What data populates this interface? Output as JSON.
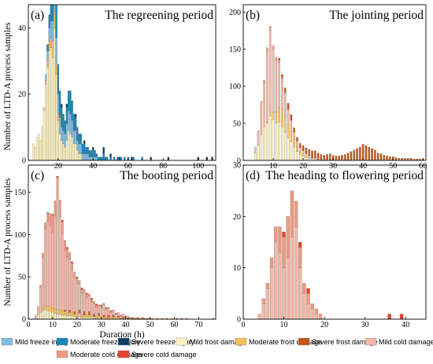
{
  "figure": {
    "xlabel": "Duration (h)",
    "ylabel": "Number of LTD-A process samples"
  },
  "colors": {
    "mild_freeze": "#7fbfe6",
    "moderate_freeze": "#1a86b8",
    "severe_freeze": "#0c3e66",
    "mild_frost": "#fbf3c4",
    "moderate_frost": "#f2c25a",
    "severe_frost": "#c4561a",
    "mild_cold": "#f2b7aa",
    "moderate_cold": "#ec9a82",
    "severe_cold": "#e5422b"
  },
  "legend": [
    {
      "key": "mild_freeze",
      "label": "Mild freeze injury"
    },
    {
      "key": "moderate_freeze",
      "label": "Moderate freeze injury"
    },
    {
      "key": "severe_freeze",
      "label": "Severe freeze injury"
    },
    {
      "key": "mild_frost",
      "label": "Mild frost damage"
    },
    {
      "key": "moderate_frost",
      "label": "Moderate frost damage"
    },
    {
      "key": "severe_frost",
      "label": "Severe frost damage"
    },
    {
      "key": "mild_cold",
      "label": "Mild cold damage"
    },
    {
      "key": "moderate_cold",
      "label": "Moderate cold damage"
    },
    {
      "key": "severe_cold",
      "label": "Severe cold damage"
    }
  ],
  "chart_data": [
    {
      "type": "bar",
      "stacked": true,
      "panel_label": "(a)",
      "title": "The regreening period",
      "xlim": [
        3,
        110
      ],
      "ylim": [
        0,
        47
      ],
      "xticks": [
        20,
        40,
        60,
        80,
        100
      ],
      "yticks": [
        0,
        20,
        40
      ],
      "bin_width": 1,
      "series": [
        {
          "key": "mild_frost",
          "x": [
            6,
            7,
            8,
            9,
            10,
            11,
            12,
            13,
            14,
            15,
            16,
            17,
            18,
            19,
            20,
            21,
            22,
            23,
            24,
            25,
            26,
            27,
            28,
            29,
            30,
            31,
            32,
            33
          ],
          "values": [
            5,
            4,
            7,
            8,
            6,
            10,
            15,
            23,
            28,
            33,
            34,
            31,
            40,
            26,
            12,
            8,
            6,
            5,
            4,
            6,
            9,
            8,
            7,
            5,
            5,
            3,
            2,
            2
          ]
        },
        {
          "key": "moderate_frost",
          "x": [
            14,
            15,
            16,
            17,
            18,
            19,
            20
          ],
          "values": [
            1,
            2,
            2,
            3,
            4,
            2,
            1
          ]
        },
        {
          "key": "mild_cold",
          "x": [
            12,
            13,
            14,
            15,
            16,
            17,
            18,
            19,
            20
          ],
          "values": [
            1,
            1,
            1,
            1,
            1,
            2,
            1,
            1,
            1
          ]
        },
        {
          "key": "mild_freeze",
          "x": [
            13,
            14,
            15,
            16,
            17,
            18,
            19,
            20,
            21,
            22,
            23,
            24,
            25,
            26,
            27,
            28,
            29,
            30,
            31,
            32,
            33,
            34,
            35,
            36,
            37,
            38,
            39,
            40,
            41,
            42
          ],
          "values": [
            2,
            3,
            4,
            5,
            6,
            7,
            8,
            6,
            5,
            4,
            4,
            4,
            5,
            6,
            6,
            5,
            4,
            4,
            3,
            3,
            3,
            2,
            2,
            2,
            2,
            1,
            1,
            1,
            1,
            1
          ]
        },
        {
          "key": "moderate_freeze",
          "x": [
            14,
            15,
            16,
            17,
            18,
            19,
            20,
            21,
            22,
            23,
            24,
            25,
            26,
            27,
            28,
            29,
            30,
            31,
            32,
            33,
            34,
            35,
            36,
            37,
            38,
            39,
            40,
            41,
            42,
            43,
            44,
            45,
            46,
            47,
            48,
            50,
            52,
            54,
            56,
            58,
            60,
            63,
            68
          ],
          "values": [
            2,
            4,
            6,
            7,
            9,
            10,
            9,
            8,
            6,
            5,
            4,
            5,
            6,
            7,
            6,
            5,
            4,
            4,
            3,
            3,
            3,
            3,
            2,
            2,
            2,
            2,
            2,
            2,
            1,
            1,
            1,
            1,
            2,
            1,
            1,
            1,
            1,
            1,
            1,
            1,
            1,
            1,
            1
          ]
        },
        {
          "key": "severe_freeze",
          "x": [
            22,
            25,
            30,
            35,
            40,
            46,
            50,
            55,
            62,
            73,
            83,
            100,
            105,
            108
          ],
          "values": [
            1,
            1,
            1,
            1,
            1,
            2,
            1,
            1,
            1,
            1,
            1,
            1,
            1,
            1
          ]
        }
      ]
    },
    {
      "type": "bar",
      "stacked": true,
      "panel_label": "(b)",
      "title": "The jointing period",
      "xlim": [
        0,
        61
      ],
      "ylim": [
        0,
        210
      ],
      "xticks": [
        10,
        20,
        30,
        40,
        50,
        60
      ],
      "yticks": [
        0,
        50,
        100,
        150,
        200
      ],
      "bin_width": 0.6,
      "series": [
        {
          "key": "mild_frost",
          "x": [
            4,
            5,
            6,
            7,
            8,
            9,
            10,
            11,
            12,
            13,
            14,
            15,
            16,
            17,
            18,
            19,
            20,
            21,
            22,
            23,
            24,
            25
          ],
          "values": [
            10,
            20,
            35,
            45,
            50,
            60,
            55,
            50,
            52,
            45,
            38,
            30,
            25,
            18,
            12,
            8,
            6,
            4,
            3,
            2,
            2,
            1
          ]
        },
        {
          "key": "moderate_frost",
          "x": [
            8,
            9,
            10,
            11,
            12,
            13,
            14,
            15,
            16,
            17,
            18,
            19,
            20,
            21,
            22
          ],
          "values": [
            2,
            5,
            10,
            15,
            20,
            25,
            22,
            18,
            14,
            10,
            7,
            4,
            3,
            2,
            1
          ]
        },
        {
          "key": "mild_cold",
          "x": [
            4,
            5,
            6,
            7,
            8,
            9,
            10,
            11,
            12,
            13,
            14,
            15,
            16,
            17,
            18,
            19,
            20,
            21,
            22,
            23,
            24
          ],
          "values": [
            8,
            20,
            45,
            60,
            95,
            110,
            85,
            70,
            60,
            40,
            30,
            20,
            15,
            10,
            7,
            5,
            4,
            3,
            2,
            1,
            1
          ]
        },
        {
          "key": "moderate_cold",
          "x": [
            7,
            8,
            9,
            10,
            11,
            12,
            13,
            14,
            15
          ],
          "values": [
            3,
            5,
            6,
            5,
            4,
            3,
            2,
            2,
            1
          ]
        },
        {
          "key": "severe_frost",
          "x": [
            12,
            13,
            14,
            15,
            16,
            17,
            18,
            19,
            20,
            21,
            22,
            23,
            24,
            25,
            26,
            27,
            28,
            29,
            30,
            31,
            32,
            33,
            34,
            35,
            36,
            37,
            38,
            39,
            40,
            41,
            42,
            43,
            44,
            45,
            46,
            47,
            48,
            49,
            50,
            51,
            52,
            53,
            54,
            55,
            56,
            57,
            58,
            59,
            60
          ],
          "values": [
            3,
            4,
            6,
            8,
            8,
            6,
            5,
            6,
            7,
            8,
            9,
            10,
            10,
            9,
            8,
            7,
            8,
            9,
            7,
            6,
            6,
            7,
            8,
            10,
            12,
            14,
            16,
            18,
            22,
            20,
            18,
            16,
            14,
            10,
            9,
            7,
            6,
            5,
            5,
            4,
            3,
            3,
            3,
            3,
            3,
            2,
            2,
            2,
            2
          ]
        }
      ]
    },
    {
      "type": "bar",
      "stacked": true,
      "panel_label": "(c)",
      "title": "The booting period",
      "xlim": [
        0,
        77
      ],
      "ylim": [
        0,
        182
      ],
      "xticks": [
        0,
        10,
        20,
        30,
        40,
        50,
        60,
        70
      ],
      "yticks": [
        0,
        50,
        100,
        150
      ],
      "bin_width": 0.8,
      "series": [
        {
          "key": "mild_frost",
          "x": [
            4,
            5,
            6,
            7,
            8,
            9,
            10,
            11,
            12,
            13,
            14,
            15,
            16,
            17,
            18,
            19,
            20,
            21,
            22,
            23,
            24,
            25,
            26,
            27,
            28,
            29,
            30
          ],
          "values": [
            5,
            8,
            10,
            12,
            10,
            9,
            8,
            7,
            6,
            6,
            5,
            5,
            4,
            4,
            4,
            3,
            3,
            3,
            2,
            2,
            2,
            2,
            2,
            1,
            1,
            1,
            1
          ]
        },
        {
          "key": "moderate_frost",
          "x": [
            6,
            7,
            8,
            9,
            10,
            11,
            12,
            13,
            14,
            15,
            16,
            17,
            18,
            19,
            20,
            21,
            22,
            23,
            24,
            25,
            26,
            27,
            28,
            29,
            30,
            31,
            32,
            33,
            34,
            35,
            36,
            37,
            38,
            39,
            40
          ],
          "values": [
            3,
            4,
            5,
            6,
            5,
            5,
            6,
            5,
            5,
            4,
            4,
            4,
            4,
            3,
            4,
            4,
            3,
            3,
            3,
            3,
            3,
            2,
            3,
            3,
            2,
            2,
            2,
            2,
            2,
            2,
            1,
            2,
            1,
            1,
            1
          ]
        },
        {
          "key": "severe_frost",
          "x": [
            15,
            17,
            19,
            21,
            23,
            25,
            27,
            29,
            31,
            33,
            35,
            37,
            39,
            41,
            43,
            45,
            47,
            49,
            51,
            53,
            55,
            57,
            59,
            61,
            63,
            65,
            76
          ],
          "values": [
            2,
            3,
            3,
            4,
            4,
            4,
            3,
            3,
            3,
            3,
            3,
            2,
            2,
            2,
            2,
            2,
            2,
            1,
            1,
            1,
            1,
            1,
            1,
            1,
            1,
            1,
            1
          ]
        },
        {
          "key": "mild_cold",
          "x": [
            3,
            4,
            5,
            6,
            7,
            8,
            9,
            10,
            11,
            12,
            13,
            14,
            15,
            16,
            17,
            18,
            19,
            20,
            21,
            22,
            23,
            24,
            25,
            26,
            27,
            28,
            29,
            30,
            31,
            32,
            33,
            34,
            35,
            36,
            37,
            38,
            39,
            40,
            41,
            42
          ],
          "values": [
            5,
            10,
            30,
            60,
            90,
            100,
            95,
            90,
            110,
            130,
            110,
            90,
            70,
            65,
            60,
            50,
            40,
            35,
            30,
            25,
            22,
            20,
            18,
            15,
            12,
            10,
            8,
            10,
            12,
            10,
            8,
            6,
            5,
            5,
            4,
            3,
            3,
            2,
            2,
            1
          ]
        },
        {
          "key": "moderate_cold",
          "x": [
            5,
            6,
            7,
            8,
            9,
            10,
            11,
            12,
            13,
            14,
            15,
            16,
            17,
            18,
            19,
            20,
            21,
            22,
            23,
            24,
            25,
            26,
            27,
            28,
            29,
            30,
            31,
            32,
            33,
            34,
            35
          ],
          "values": [
            2,
            5,
            8,
            10,
            15,
            20,
            18,
            25,
            20,
            15,
            12,
            10,
            8,
            8,
            7,
            6,
            5,
            5,
            4,
            4,
            3,
            3,
            3,
            2,
            2,
            2,
            2,
            1,
            1,
            1,
            1
          ]
        },
        {
          "key": "severe_cold",
          "x": [
            8,
            10,
            12,
            14,
            16,
            18,
            20,
            22,
            24,
            26,
            28,
            30,
            32,
            34,
            36,
            38,
            40,
            42,
            44,
            46,
            48,
            50
          ],
          "values": [
            1,
            1,
            2,
            2,
            2,
            2,
            2,
            2,
            2,
            2,
            2,
            2,
            1,
            1,
            1,
            1,
            1,
            1,
            1,
            1,
            1,
            1
          ]
        }
      ]
    },
    {
      "type": "bar",
      "stacked": true,
      "panel_label": "(d)",
      "title": "The heading to flowering period",
      "xlim": [
        0,
        45
      ],
      "ylim": [
        0,
        30
      ],
      "xticks": [
        0,
        10,
        20,
        30,
        40
      ],
      "yticks": [
        0,
        10,
        20,
        30
      ],
      "bin_width": 0.8,
      "series": [
        {
          "key": "mild_cold",
          "x": [
            4,
            5,
            6,
            7,
            8,
            9,
            10,
            11,
            12,
            13,
            14,
            15,
            16,
            17,
            18
          ],
          "values": [
            1,
            3,
            6,
            10,
            15,
            13,
            10,
            12,
            16,
            18,
            10,
            5,
            3,
            2,
            1
          ]
        },
        {
          "key": "moderate_cold",
          "x": [
            5,
            6,
            7,
            8,
            9,
            10,
            11,
            12,
            13,
            14,
            15,
            16,
            17,
            18,
            19
          ],
          "values": [
            1,
            1,
            2,
            3,
            5,
            6,
            8,
            9,
            5,
            4,
            2,
            2,
            1,
            1,
            1
          ]
        },
        {
          "key": "severe_cold",
          "x": [
            10,
            14,
            16,
            36,
            39
          ],
          "values": [
            1,
            1,
            1,
            1,
            1
          ]
        }
      ]
    }
  ]
}
